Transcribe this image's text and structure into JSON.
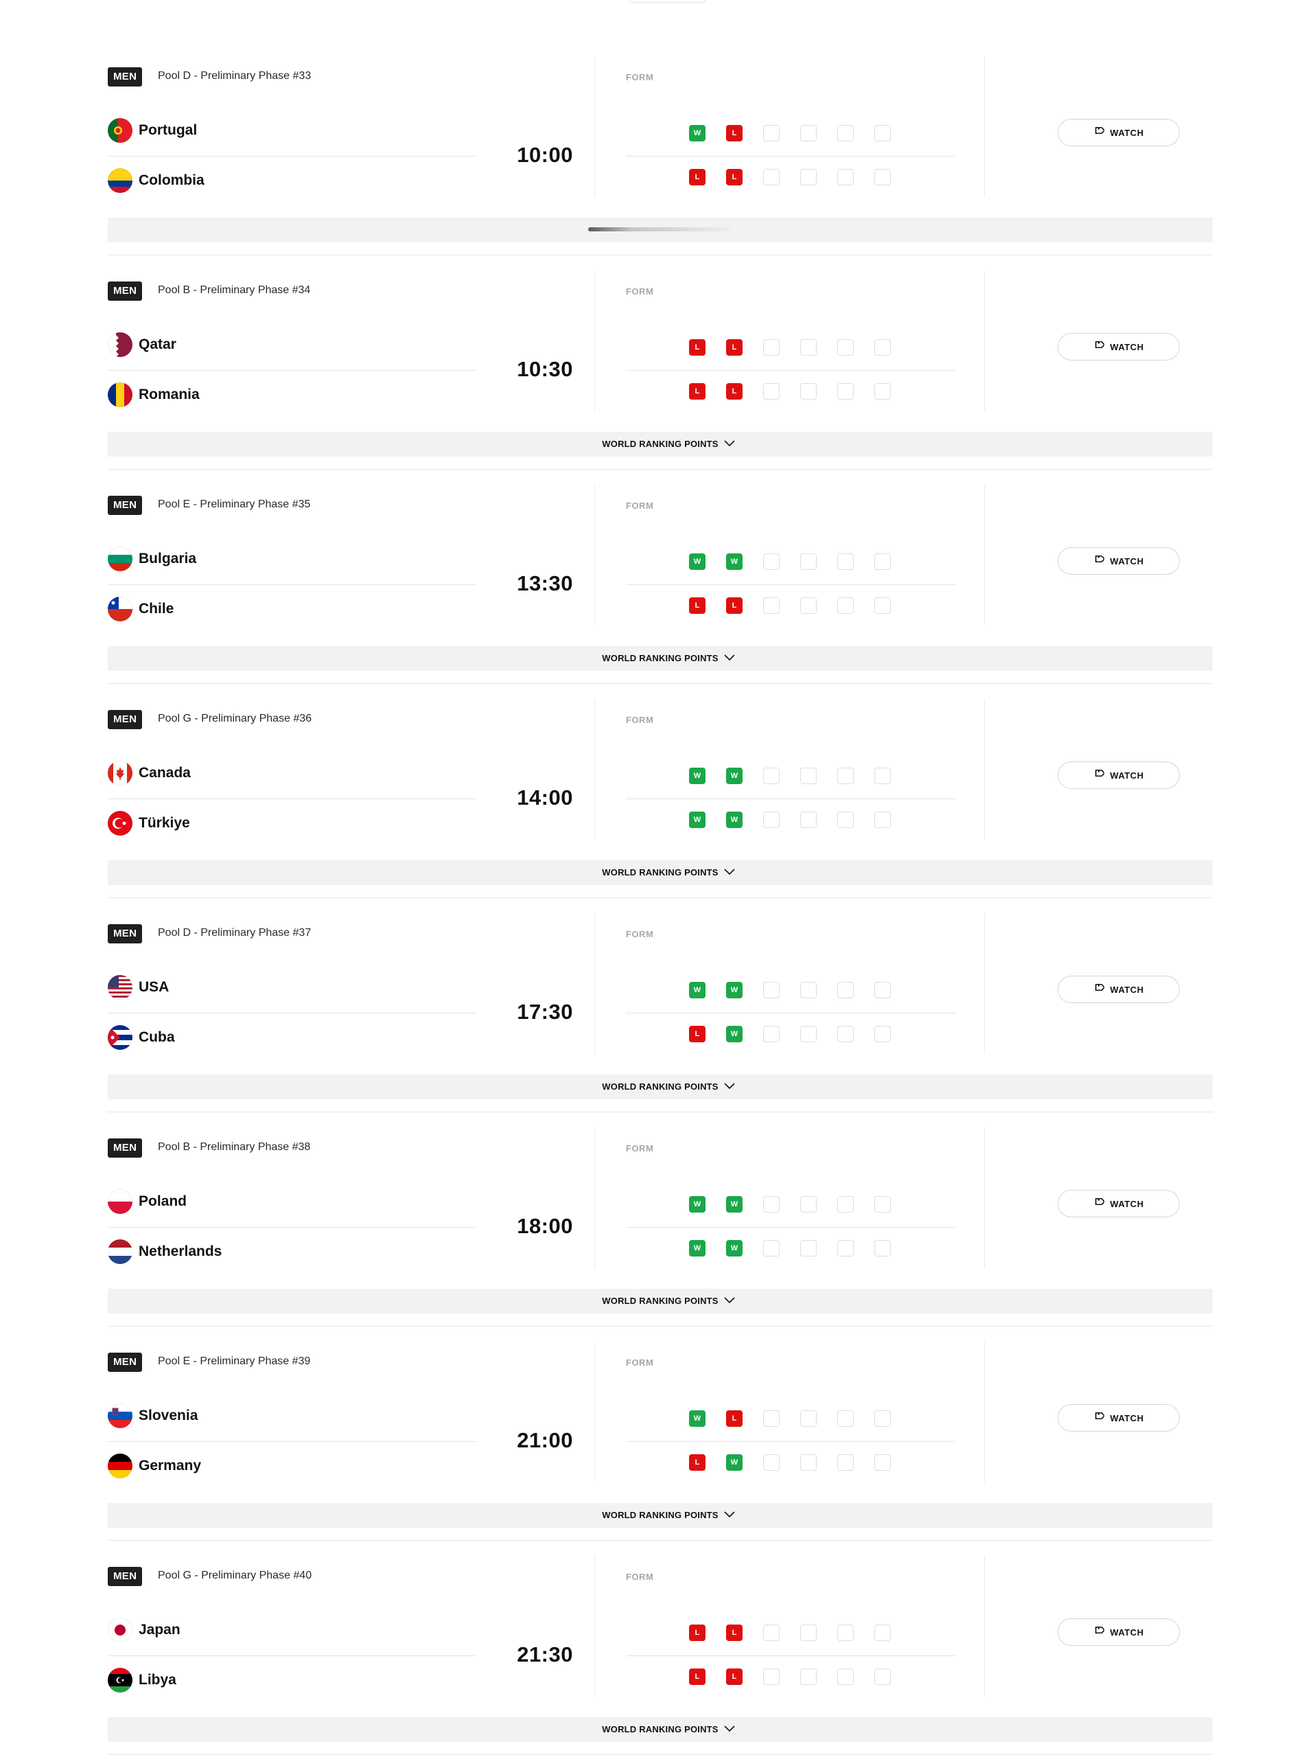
{
  "matches": [
    {
      "category": "MEN",
      "info": "Pool D - Preliminary Phase #33",
      "home": {
        "name": "Portugal",
        "flag": "portugal-flag-icon",
        "form": [
          "W",
          "L",
          "",
          "",
          "",
          ""
        ]
      },
      "away": {
        "name": "Colombia",
        "flag": "colombia-flag-icon",
        "form": [
          "L",
          "L",
          "",
          "",
          "",
          ""
        ]
      },
      "time": "10:00",
      "form_label": "FORM",
      "watch_label": "WATCH",
      "expand_label": "",
      "expand_loading": true
    },
    {
      "category": "MEN",
      "info": "Pool B - Preliminary Phase #34",
      "home": {
        "name": "Qatar",
        "flag": "qatar-flag-icon",
        "form": [
          "L",
          "L",
          "",
          "",
          "",
          ""
        ]
      },
      "away": {
        "name": "Romania",
        "flag": "romania-flag-icon",
        "form": [
          "L",
          "L",
          "",
          "",
          "",
          ""
        ]
      },
      "time": "10:30",
      "form_label": "FORM",
      "watch_label": "WATCH",
      "expand_label": "WORLD RANKING POINTS",
      "expand_loading": false
    },
    {
      "category": "MEN",
      "info": "Pool E - Preliminary Phase #35",
      "home": {
        "name": "Bulgaria",
        "flag": "bulgaria-flag-icon",
        "form": [
          "W",
          "W",
          "",
          "",
          "",
          ""
        ]
      },
      "away": {
        "name": "Chile",
        "flag": "chile-flag-icon",
        "form": [
          "L",
          "L",
          "",
          "",
          "",
          ""
        ]
      },
      "time": "13:30",
      "form_label": "FORM",
      "watch_label": "WATCH",
      "expand_label": "WORLD RANKING POINTS",
      "expand_loading": false
    },
    {
      "category": "MEN",
      "info": "Pool G - Preliminary Phase #36",
      "home": {
        "name": "Canada",
        "flag": "canada-flag-icon",
        "form": [
          "W",
          "W",
          "",
          "",
          "",
          ""
        ]
      },
      "away": {
        "name": "Türkiye",
        "flag": "turkiye-flag-icon",
        "form": [
          "W",
          "W",
          "",
          "",
          "",
          ""
        ]
      },
      "time": "14:00",
      "form_label": "FORM",
      "watch_label": "WATCH",
      "expand_label": "WORLD RANKING POINTS",
      "expand_loading": false
    },
    {
      "category": "MEN",
      "info": "Pool D - Preliminary Phase #37",
      "home": {
        "name": "USA",
        "flag": "usa-flag-icon",
        "form": [
          "W",
          "W",
          "",
          "",
          "",
          ""
        ]
      },
      "away": {
        "name": "Cuba",
        "flag": "cuba-flag-icon",
        "form": [
          "L",
          "W",
          "",
          "",
          "",
          ""
        ]
      },
      "time": "17:30",
      "form_label": "FORM",
      "watch_label": "WATCH",
      "expand_label": "WORLD RANKING POINTS",
      "expand_loading": false
    },
    {
      "category": "MEN",
      "info": "Pool B - Preliminary Phase #38",
      "home": {
        "name": "Poland",
        "flag": "poland-flag-icon",
        "form": [
          "W",
          "W",
          "",
          "",
          "",
          ""
        ]
      },
      "away": {
        "name": "Netherlands",
        "flag": "netherlands-flag-icon",
        "form": [
          "W",
          "W",
          "",
          "",
          "",
          ""
        ]
      },
      "time": "18:00",
      "form_label": "FORM",
      "watch_label": "WATCH",
      "expand_label": "WORLD RANKING POINTS",
      "expand_loading": false
    },
    {
      "category": "MEN",
      "info": "Pool E - Preliminary Phase #39",
      "home": {
        "name": "Slovenia",
        "flag": "slovenia-flag-icon",
        "form": [
          "W",
          "L",
          "",
          "",
          "",
          ""
        ]
      },
      "away": {
        "name": "Germany",
        "flag": "germany-flag-icon",
        "form": [
          "L",
          "W",
          "",
          "",
          "",
          ""
        ]
      },
      "time": "21:00",
      "form_label": "FORM",
      "watch_label": "WATCH",
      "expand_label": "WORLD RANKING POINTS",
      "expand_loading": false
    },
    {
      "category": "MEN",
      "info": "Pool G - Preliminary Phase #40",
      "home": {
        "name": "Japan",
        "flag": "japan-flag-icon",
        "form": [
          "L",
          "L",
          "",
          "",
          "",
          ""
        ]
      },
      "away": {
        "name": "Libya",
        "flag": "libya-flag-icon",
        "form": [
          "L",
          "L",
          "",
          "",
          "",
          ""
        ]
      },
      "time": "21:30",
      "form_label": "FORM",
      "watch_label": "WATCH",
      "expand_label": "WORLD RANKING POINTS",
      "expand_loading": false
    }
  ],
  "colors": {
    "win": "#1aa849",
    "loss": "#e00f0f",
    "badge": "#1f1f1f",
    "expand_bar": "#f2f2f2"
  }
}
